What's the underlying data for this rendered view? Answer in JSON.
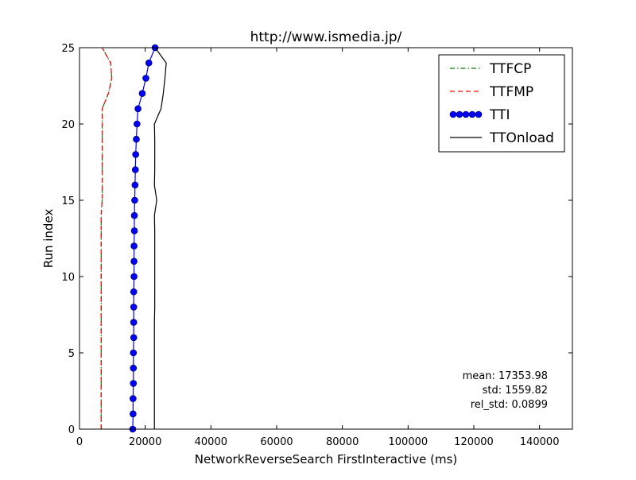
{
  "chart_data": {
    "type": "line",
    "title": "http://www.ismedia.jp/",
    "xlabel": "NetworkReverseSearch FirstInteractive (ms)",
    "ylabel": "Run index",
    "xlim": [
      0,
      150000
    ],
    "ylim": [
      0,
      25
    ],
    "xticks": [
      0,
      20000,
      40000,
      60000,
      80000,
      100000,
      120000,
      140000
    ],
    "yticks": [
      0,
      5,
      10,
      15,
      20,
      25
    ],
    "grid": false,
    "legend_position": "upper-right",
    "series": [
      {
        "name": "TTFCP",
        "color": "#008000",
        "style": "dashdot",
        "y": [
          0,
          1,
          2,
          3,
          4,
          5,
          6,
          7,
          8,
          9,
          10,
          11,
          12,
          13,
          14,
          15,
          16,
          17,
          18,
          19,
          20,
          21,
          22,
          23,
          24,
          25
        ],
        "x": [
          6600,
          6600,
          6600,
          6600,
          6600,
          6600,
          6600,
          6600,
          6600,
          6600,
          6600,
          6600,
          6600,
          6600,
          6600,
          6900,
          6900,
          6900,
          6900,
          6900,
          6900,
          6900,
          8800,
          9800,
          9500,
          6900
        ]
      },
      {
        "name": "TTFMP",
        "color": "#ff0000",
        "style": "dashed",
        "y": [
          0,
          1,
          2,
          3,
          4,
          5,
          6,
          7,
          8,
          9,
          10,
          11,
          12,
          13,
          14,
          15,
          16,
          17,
          18,
          19,
          20,
          21,
          22,
          23,
          24,
          25
        ],
        "x": [
          6600,
          6600,
          6600,
          6600,
          6600,
          6600,
          6600,
          6600,
          6600,
          6600,
          6600,
          6600,
          6600,
          6600,
          6600,
          6900,
          6900,
          6900,
          6900,
          6900,
          6900,
          6900,
          8800,
          9800,
          9500,
          6900
        ]
      },
      {
        "name": "TTI",
        "color": "#0000ff",
        "style": "solid-markers",
        "y": [
          0,
          1,
          2,
          3,
          4,
          5,
          6,
          7,
          8,
          9,
          10,
          11,
          12,
          13,
          14,
          15,
          16,
          17,
          18,
          19,
          20,
          21,
          22,
          23,
          24,
          25
        ],
        "x": [
          16200,
          16300,
          16300,
          16400,
          16400,
          16400,
          16500,
          16500,
          16500,
          16500,
          16600,
          16600,
          16600,
          16700,
          16700,
          16800,
          16900,
          17000,
          17100,
          17300,
          17500,
          17800,
          19100,
          20200,
          21100,
          23000
        ]
      },
      {
        "name": "TTOnload",
        "color": "#000000",
        "style": "solid",
        "y": [
          0,
          1,
          2,
          3,
          4,
          5,
          6,
          7,
          8,
          9,
          10,
          11,
          12,
          13,
          14,
          15,
          16,
          17,
          18,
          19,
          20,
          21,
          22,
          23,
          24,
          25
        ],
        "x": [
          22800,
          22800,
          22800,
          22800,
          22800,
          22800,
          22800,
          22800,
          22900,
          22900,
          22900,
          22900,
          22900,
          22900,
          22800,
          23500,
          22800,
          22900,
          22900,
          22900,
          22800,
          24800,
          25500,
          26000,
          26400,
          23000
        ]
      }
    ],
    "annotations": [
      "mean: 17353.98",
      "std: 1559.82",
      "rel_std: 0.0899"
    ]
  }
}
